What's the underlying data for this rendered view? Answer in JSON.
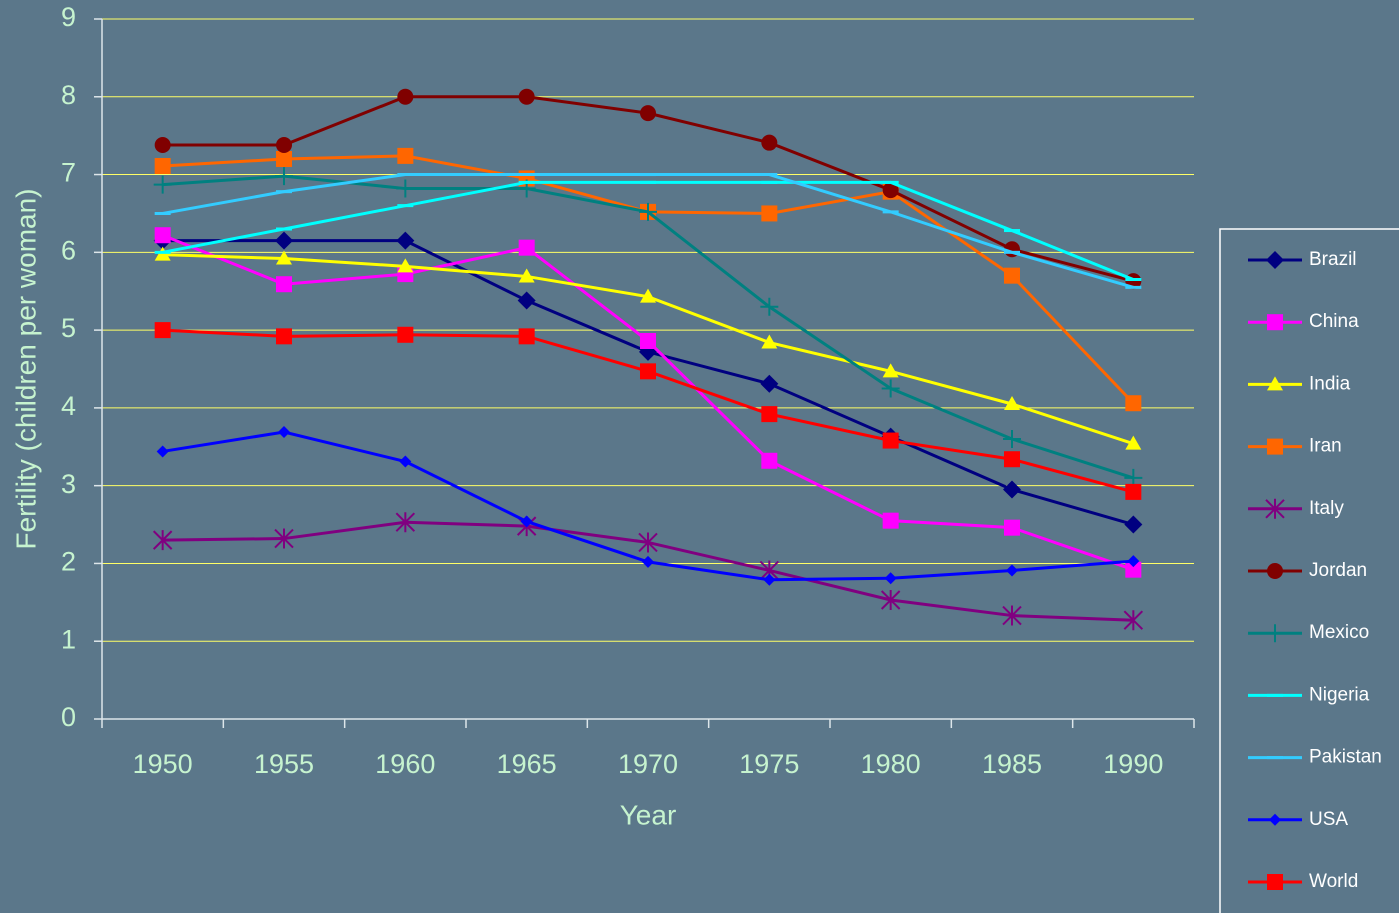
{
  "chart_data": {
    "type": "line",
    "x_label": "Year",
    "y_label": "Fertility (children per woman)",
    "categories": [
      "1950",
      "1955",
      "1960",
      "1965",
      "1970",
      "1975",
      "1980",
      "1985",
      "1990"
    ],
    "ylim": [
      0,
      9
    ],
    "yticks": [
      0,
      1,
      2,
      3,
      4,
      5,
      6,
      7,
      8,
      9
    ],
    "grid": true,
    "legend": "right",
    "series": [
      {
        "name": "Brazil",
        "color": "#000080",
        "marker": "diamond",
        "values": [
          6.15,
          6.15,
          6.15,
          5.38,
          4.72,
          4.31,
          3.63,
          2.95,
          2.5
        ]
      },
      {
        "name": "China",
        "color": "#ff00ff",
        "marker": "square",
        "values": [
          6.22,
          5.59,
          5.72,
          6.06,
          4.86,
          3.32,
          2.55,
          2.46,
          1.92
        ]
      },
      {
        "name": "India",
        "color": "#ffff00",
        "marker": "triangle",
        "values": [
          5.97,
          5.92,
          5.82,
          5.69,
          5.43,
          4.84,
          4.47,
          4.05,
          3.54
        ]
      },
      {
        "name": "Iran",
        "color": "#ff6600",
        "marker": "square",
        "values": [
          7.11,
          7.2,
          7.24,
          6.95,
          6.52,
          6.5,
          6.78,
          5.7,
          4.06
        ]
      },
      {
        "name": "Italy",
        "color": "#800080",
        "marker": "star",
        "values": [
          2.3,
          2.32,
          2.53,
          2.48,
          2.27,
          1.91,
          1.53,
          1.33,
          1.27
        ]
      },
      {
        "name": "Jordan",
        "color": "#800000",
        "marker": "circle",
        "values": [
          7.38,
          7.38,
          8.0,
          8.0,
          7.79,
          7.41,
          6.8,
          6.04,
          5.63
        ]
      },
      {
        "name": "Mexico",
        "color": "#008080",
        "marker": "plus",
        "values": [
          6.87,
          6.98,
          6.82,
          6.82,
          6.52,
          5.3,
          4.25,
          3.6,
          3.1
        ]
      },
      {
        "name": "Nigeria",
        "color": "#00ffff",
        "marker": "dash",
        "values": [
          6.0,
          6.3,
          6.6,
          6.9,
          6.9,
          6.9,
          6.9,
          6.28,
          5.65
        ]
      },
      {
        "name": "Pakistan",
        "color": "#33ccff",
        "marker": "dash",
        "values": [
          6.5,
          6.78,
          7.0,
          7.0,
          7.0,
          7.0,
          6.52,
          6.0,
          5.55
        ]
      },
      {
        "name": "USA",
        "color": "#0000ff",
        "marker": "diamond-small",
        "values": [
          3.44,
          3.69,
          3.31,
          2.54,
          2.02,
          1.79,
          1.81,
          1.91,
          2.03
        ]
      },
      {
        "name": "World",
        "color": "#ff0000",
        "marker": "square",
        "values": [
          5.0,
          4.92,
          4.94,
          4.92,
          4.47,
          3.92,
          3.58,
          3.34,
          2.92
        ]
      }
    ]
  }
}
